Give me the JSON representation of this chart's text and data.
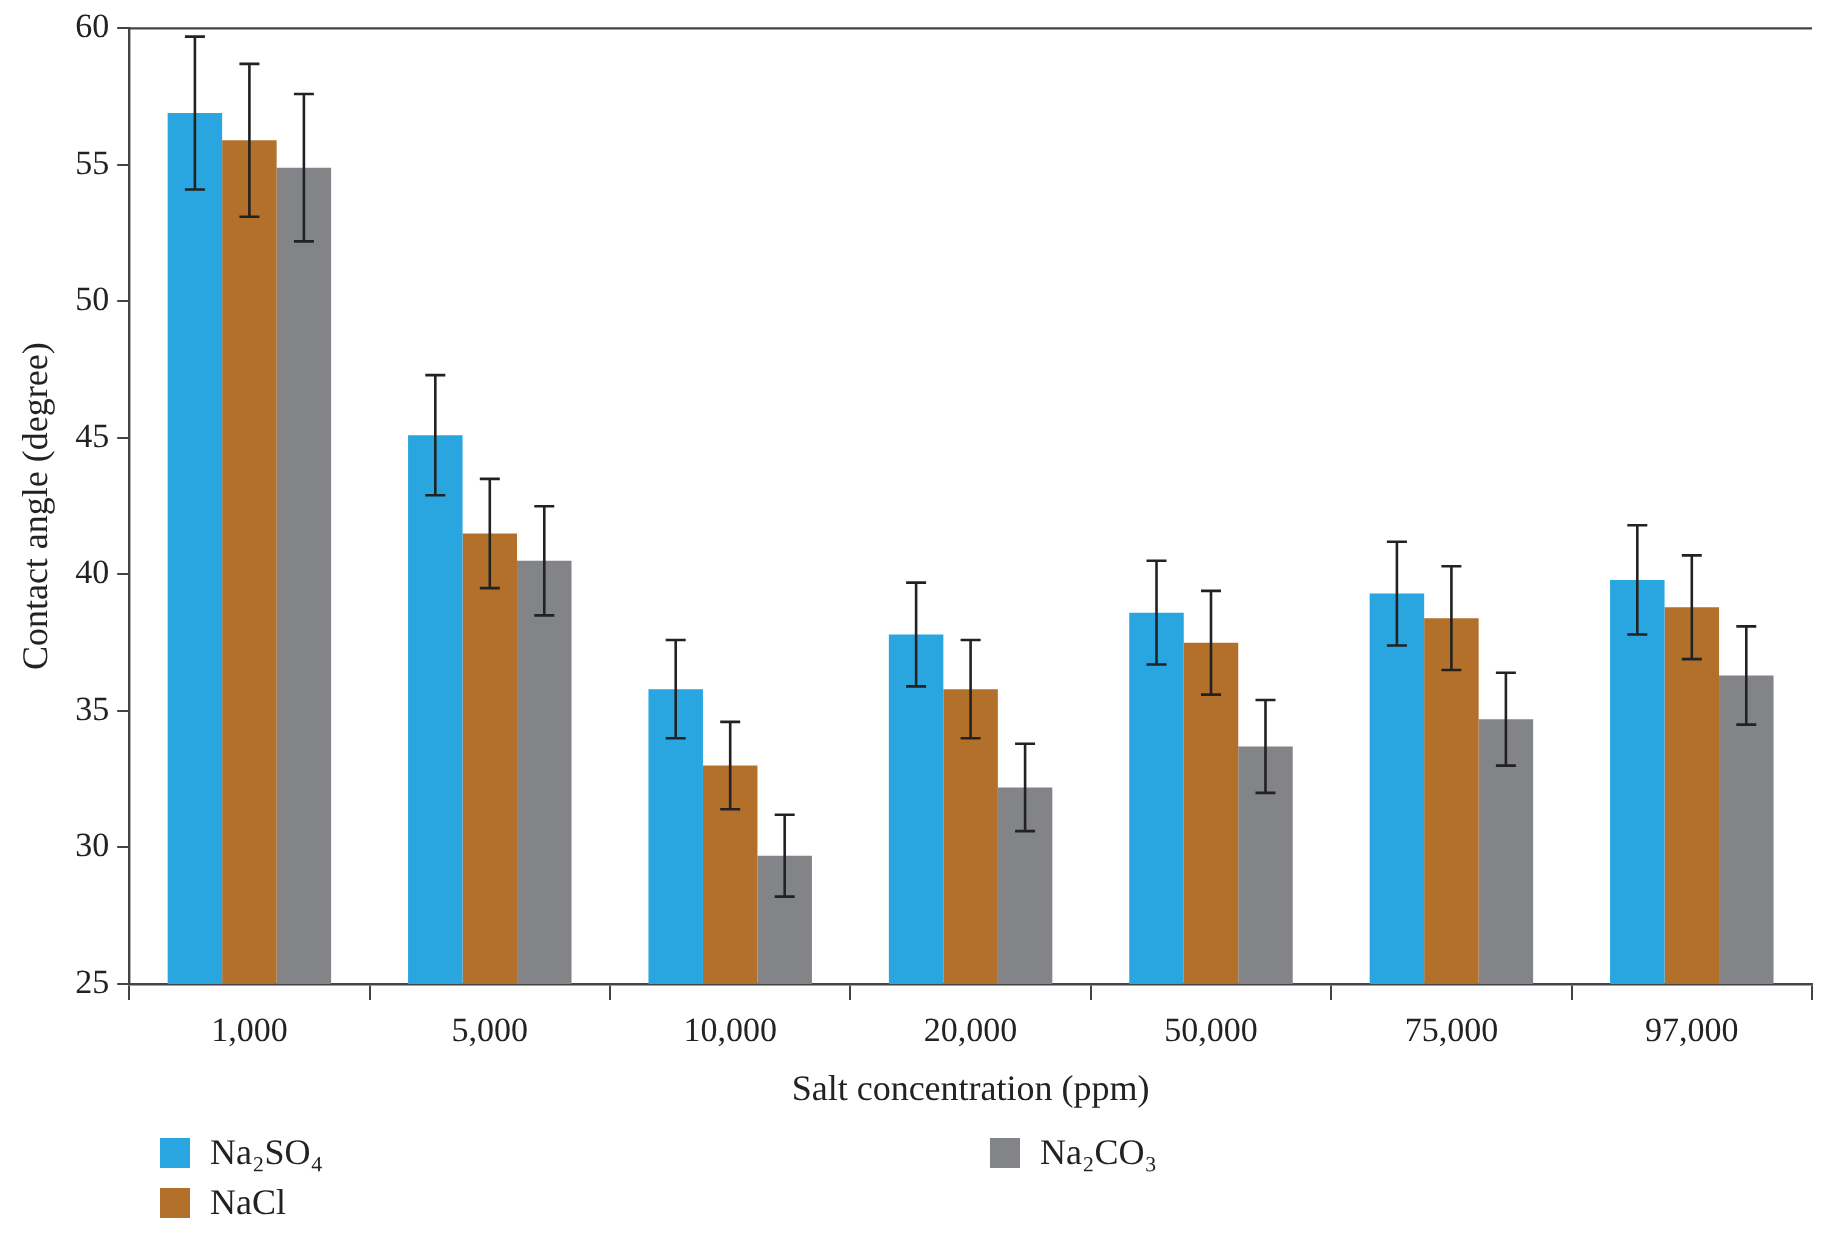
{
  "chart_data": {
    "type": "bar",
    "xlabel": "Salt concentration (ppm)",
    "ylabel": "Contact angle (degree)",
    "categories": [
      "1,000",
      "5,000",
      "10,000",
      "20,000",
      "50,000",
      "75,000",
      "97,000"
    ],
    "series": [
      {
        "name": "Na₂SO₄",
        "color": "#29a6df",
        "values": [
          56.9,
          45.1,
          35.8,
          37.8,
          38.6,
          39.3,
          39.8
        ],
        "errors": [
          2.8,
          2.2,
          1.8,
          1.9,
          1.9,
          1.9,
          2.0
        ]
      },
      {
        "name": "NaCl",
        "color": "#b2702a",
        "values": [
          55.9,
          41.5,
          33.0,
          35.8,
          37.5,
          38.4,
          38.8
        ],
        "errors": [
          2.8,
          2.0,
          1.6,
          1.8,
          1.9,
          1.9,
          1.9
        ]
      },
      {
        "name": "Na₂CO₃",
        "color": "#838488",
        "values": [
          54.9,
          40.5,
          29.7,
          32.2,
          33.7,
          34.7,
          36.3
        ],
        "errors": [
          2.7,
          2.0,
          1.5,
          1.6,
          1.7,
          1.7,
          1.8
        ]
      }
    ],
    "ylim": [
      25,
      60
    ],
    "yticks": [
      25,
      30,
      35,
      40,
      45,
      50,
      55,
      60
    ],
    "grid": false,
    "legend": "bottom"
  }
}
